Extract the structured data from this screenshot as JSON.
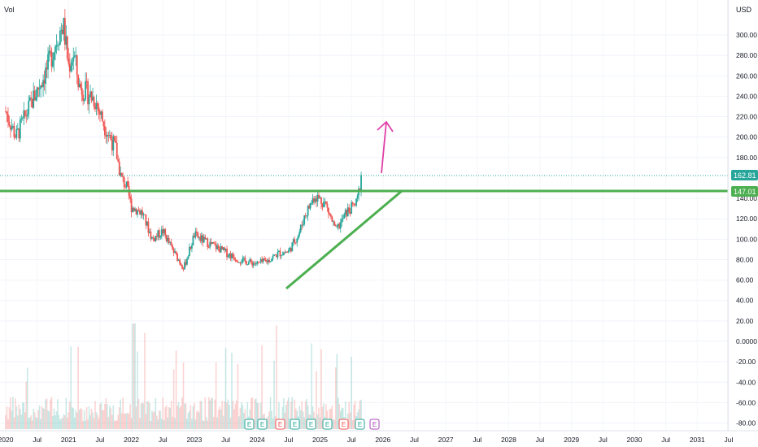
{
  "header": {
    "volume_label": "Vol",
    "currency_label": "USD"
  },
  "price_axis": {
    "tick_labels": [
      "300.00",
      "280.00",
      "260.00",
      "240.00",
      "220.00",
      "200.00",
      "180.00",
      "140.00",
      "120.00",
      "100.00",
      "80.00",
      "60.00",
      "40.00",
      "20.00",
      "0.0000",
      "-20.00",
      "-40.00",
      "-60.00",
      "-80.00"
    ],
    "current_price_label": "162.81",
    "level_label": "147.01"
  },
  "time_axis": {
    "tick_labels": [
      "2020",
      "Jul",
      "2021",
      "Jul",
      "2022",
      "Jul",
      "2023",
      "Jul",
      "2024",
      "Jul",
      "2025",
      "Jul",
      "2026",
      "Jul",
      "2027",
      "Jul",
      "2028",
      "Jul",
      "2029",
      "Jul",
      "2030",
      "Jul",
      "2031",
      "Jul"
    ]
  },
  "event_markers": [
    "E",
    "E",
    "E",
    "E",
    "E",
    "E",
    "E",
    "E",
    "E"
  ],
  "colors": {
    "up": "#26a69a",
    "down": "#ef5350",
    "support_line": "#4caf50",
    "trend_line": "#4caf50",
    "arrow": "#e040a8",
    "price_label_bg": "#26a69a",
    "level_label_bg": "#4caf50",
    "earnings_marker": "#26a69a",
    "earnings_marker_alt": "#ef5350",
    "earnings_marker_future": "#ab47bc"
  },
  "chart_data": {
    "type": "candlestick",
    "x_range": [
      "2020-01",
      "2031-12"
    ],
    "y_range": [
      -90,
      320
    ],
    "current_price": 162.81,
    "horizontal_level": 147.01,
    "trendline": {
      "from": {
        "date": "2024-07",
        "price": 51
      },
      "to": {
        "date": "2026-04",
        "price": 147.01
      }
    },
    "arrow": {
      "from": {
        "date": "2026-01",
        "price": 163
      },
      "to": {
        "date": "2026-01",
        "price": 216
      }
    },
    "price_path": [
      [
        "2020-01",
        225
      ],
      [
        "2020-03",
        200
      ],
      [
        "2020-06",
        235
      ],
      [
        "2020-09",
        268
      ],
      [
        "2020-11",
        300
      ],
      [
        "2020-12",
        310
      ],
      [
        "2021-01",
        270
      ],
      [
        "2021-02",
        282
      ],
      [
        "2021-03",
        250
      ],
      [
        "2021-06",
        237
      ],
      [
        "2021-08",
        210
      ],
      [
        "2021-10",
        188
      ],
      [
        "2021-11",
        160
      ],
      [
        "2021-12",
        152
      ],
      [
        "2022-01",
        132
      ],
      [
        "2022-03",
        126
      ],
      [
        "2022-05",
        100
      ],
      [
        "2022-07",
        108
      ],
      [
        "2022-09",
        88
      ],
      [
        "2022-11",
        72
      ],
      [
        "2023-01",
        104
      ],
      [
        "2023-03",
        98
      ],
      [
        "2023-06",
        90
      ],
      [
        "2023-08",
        84
      ],
      [
        "2023-10",
        79
      ],
      [
        "2024-01",
        76
      ],
      [
        "2024-03",
        79
      ],
      [
        "2024-05",
        86
      ],
      [
        "2024-07",
        88
      ],
      [
        "2024-09",
        106
      ],
      [
        "2024-10",
        122
      ],
      [
        "2024-12",
        143
      ],
      [
        "2025-02",
        135
      ],
      [
        "2025-04",
        108
      ],
      [
        "2025-05",
        116
      ],
      [
        "2025-06",
        126
      ],
      [
        "2025-08",
        135
      ],
      [
        "2025-09",
        162.81
      ]
    ]
  }
}
